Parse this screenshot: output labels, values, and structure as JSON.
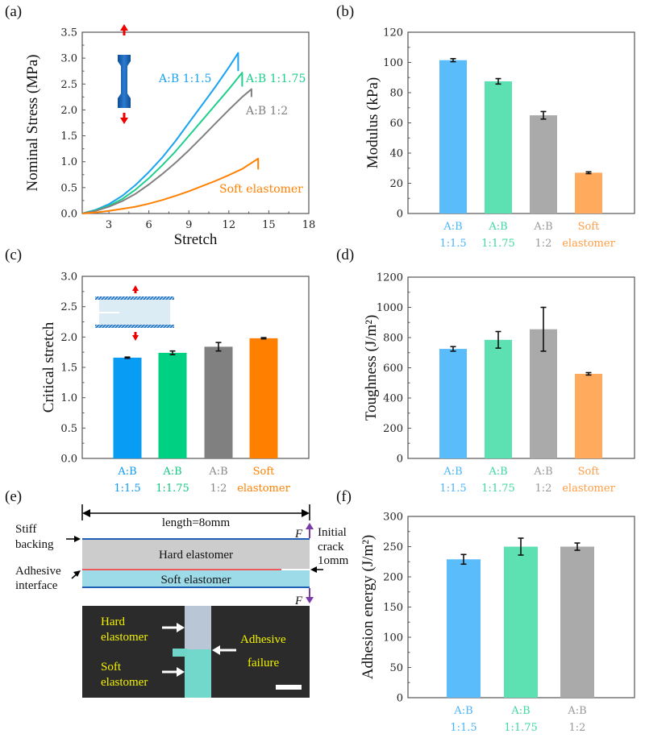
{
  "figure": {
    "panel_labels": [
      "(a)",
      "(b)",
      "(c)",
      "(d)",
      "(e)",
      "(f)"
    ],
    "colors": {
      "ab_1_1_5": "#1aa3f0",
      "ab_1_1_75": "#1fcf8c",
      "ab_1_2": "#808080",
      "soft": "#ff8000",
      "bar_ab_1_1_5": "#5bbcfb",
      "bar_ab_1_1_75": "#5de0b2",
      "bar_ab_1_2": "#aaaaaa",
      "bar_soft": "#ffaa5c",
      "c_ab_1_1_5": "#099cf5",
      "c_ab_1_1_75": "#00d082",
      "c_ab_1_2": "#808080",
      "c_soft": "#ff8000"
    },
    "categories": [
      {
        "line1": "A:B",
        "line2": "1:1.5"
      },
      {
        "line1": "A:B",
        "line2": "1:1.75"
      },
      {
        "line1": "A:B",
        "line2": "1:2"
      },
      {
        "line1": "Soft",
        "line2": "elastomer"
      }
    ]
  },
  "chart_data": [
    {
      "id": "a",
      "type": "line",
      "title": "",
      "xlabel": "Stretch",
      "ylabel": "Nominal Stress (MPa)",
      "xlim": [
        1,
        18
      ],
      "ylim": [
        0,
        3.5
      ],
      "xticks": [
        "3",
        "6",
        "9",
        "12",
        "15",
        "18"
      ],
      "yticks": [
        "0.0",
        "0.5",
        "1.0",
        "1.5",
        "2.0",
        "2.5",
        "3.0",
        "3.5"
      ],
      "series": [
        {
          "name": "A:B 1:1.5",
          "label": "A:B 1:1.5",
          "x": [
            1,
            2,
            3,
            4,
            5,
            6,
            7,
            8,
            9,
            10,
            11,
            12,
            12.7,
            12.7
          ],
          "y": [
            0,
            0.07,
            0.18,
            0.34,
            0.55,
            0.8,
            1.08,
            1.4,
            1.75,
            2.1,
            2.45,
            2.82,
            3.1,
            2.75
          ]
        },
        {
          "name": "A:B 1:1.75",
          "label": "A:B 1:1.75",
          "x": [
            1,
            2,
            3,
            4,
            5,
            6,
            7,
            8,
            9,
            10,
            11,
            12,
            13,
            13.0
          ],
          "y": [
            0,
            0.06,
            0.15,
            0.28,
            0.46,
            0.68,
            0.93,
            1.2,
            1.5,
            1.8,
            2.1,
            2.4,
            2.72,
            2.45
          ]
        },
        {
          "name": "A:B 1:2",
          "label": "A:B 1:2",
          "x": [
            1,
            2,
            3,
            4,
            5,
            6,
            7,
            8,
            9,
            10,
            11,
            12,
            13,
            13.7,
            13.7
          ],
          "y": [
            0,
            0.05,
            0.13,
            0.24,
            0.38,
            0.56,
            0.76,
            0.98,
            1.22,
            1.48,
            1.74,
            2.0,
            2.25,
            2.4,
            2.25
          ]
        },
        {
          "name": "Soft elastomer",
          "label": "Soft elastomer",
          "x": [
            1,
            2,
            3,
            4,
            5,
            6,
            7,
            8,
            9,
            10,
            11,
            12,
            13,
            14.2,
            14.2
          ],
          "y": [
            0,
            0.02,
            0.05,
            0.09,
            0.13,
            0.19,
            0.26,
            0.34,
            0.43,
            0.53,
            0.63,
            0.74,
            0.86,
            1.06,
            0.85
          ]
        }
      ]
    },
    {
      "id": "b",
      "type": "bar",
      "ylabel": "Modulus (kPa)",
      "ylim": [
        0,
        120
      ],
      "yticks": [
        "0",
        "20",
        "40",
        "60",
        "80",
        "100",
        "120"
      ],
      "categories": [
        "A:B 1:1.5",
        "A:B 1:1.75",
        "A:B 1:2",
        "Soft elastomer"
      ],
      "values": [
        101.5,
        87.5,
        65,
        27
      ],
      "errors": [
        1,
        1.8,
        2.5,
        0.6
      ]
    },
    {
      "id": "c",
      "type": "bar",
      "ylabel": "Critical stretch",
      "ylim": [
        0,
        3.0
      ],
      "yticks": [
        "0.0",
        "0.5",
        "1.0",
        "1.5",
        "2.0",
        "2.5",
        "3.0"
      ],
      "categories": [
        "A:B 1:1.5",
        "A:B 1:1.75",
        "A:B 1:2",
        "Soft elastomer"
      ],
      "values": [
        1.66,
        1.74,
        1.84,
        1.98
      ],
      "errors": [
        0.01,
        0.03,
        0.07,
        0.01
      ]
    },
    {
      "id": "d",
      "type": "bar",
      "ylabel": "Toughness (J/m²)",
      "ylim": [
        0,
        1200
      ],
      "yticks": [
        "0",
        "200",
        "400",
        "600",
        "800",
        "1000",
        "1200"
      ],
      "categories": [
        "A:B 1:1.5",
        "A:B 1:1.75",
        "A:B 1:2",
        "Soft elastomer"
      ],
      "values": [
        725,
        785,
        855,
        560
      ],
      "errors": [
        15,
        55,
        145,
        8
      ]
    },
    {
      "id": "f",
      "type": "bar",
      "ylabel": "Adhesion energy (J/m²)",
      "ylim": [
        0,
        300
      ],
      "yticks": [
        "0",
        "50",
        "100",
        "150",
        "200",
        "250",
        "300"
      ],
      "categories": [
        "A:B 1:1.5",
        "A:B 1:1.75",
        "A:B 1:2"
      ],
      "values": [
        229,
        250,
        250
      ],
      "errors": [
        8,
        14,
        6
      ]
    }
  ],
  "diagram_e": {
    "length_label": "length=8omm",
    "stiff_backing": [
      "Stiff",
      "backing"
    ],
    "adhesive_interface": [
      "Adhesive",
      "interface"
    ],
    "initial_crack": [
      "Initial",
      "crack",
      "1omm"
    ],
    "hard_layer": "Hard elastomer",
    "soft_layer": "Soft elastomer",
    "force_label": "F",
    "photo": {
      "hard": [
        "Hard",
        "elastomer"
      ],
      "soft": [
        "Soft",
        "elastomer"
      ],
      "failure": [
        "Adhesive",
        "failure"
      ]
    }
  },
  "inset_a": {
    "description": "dog-bone specimen under uniaxial tension"
  },
  "inset_c": {
    "description": "pure-shear notched specimen under tension"
  }
}
